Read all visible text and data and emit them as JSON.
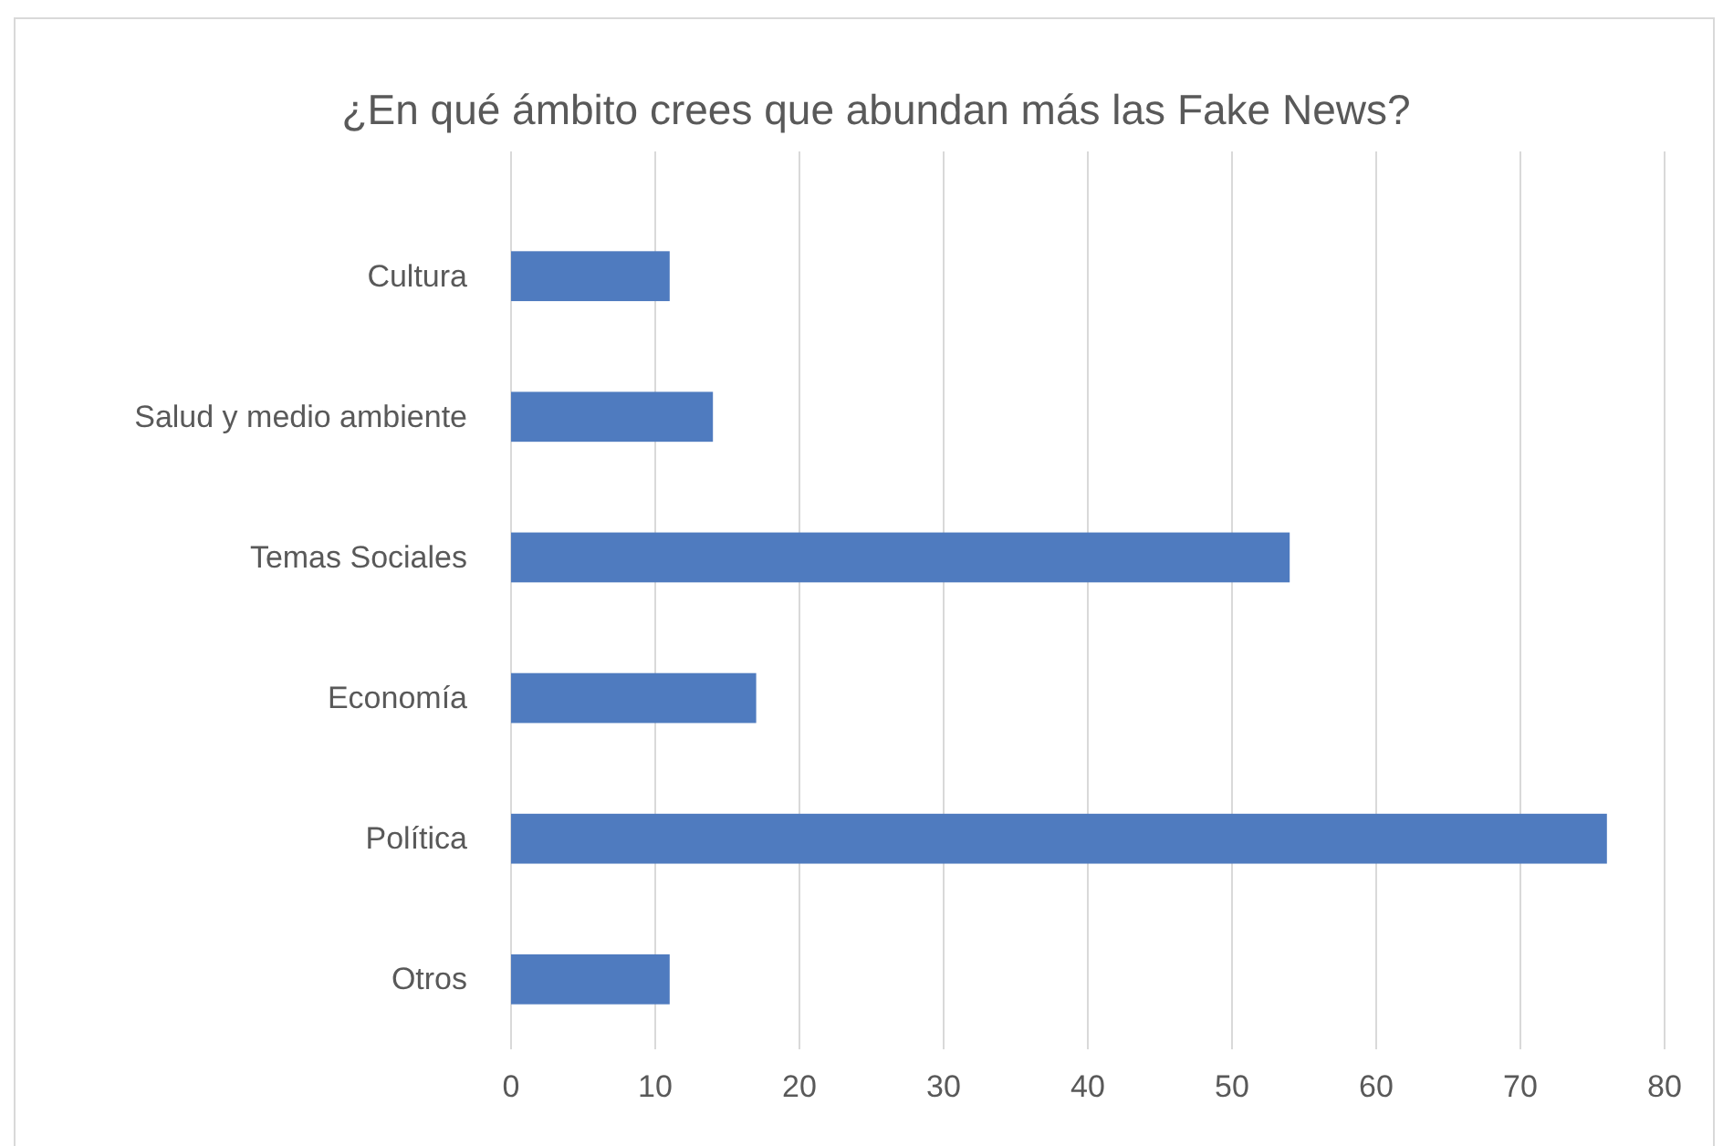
{
  "chart_data": {
    "type": "bar",
    "orientation": "horizontal",
    "title": "¿En qué ámbito crees que abundan más las Fake News?",
    "categories": [
      "Cultura",
      "Salud y medio ambiente",
      "Temas Sociales",
      "Economía",
      "Política",
      "Otros"
    ],
    "values": [
      11,
      14,
      54,
      17,
      76,
      11
    ],
    "color": "#4f7bbf",
    "xlim": [
      0,
      80
    ],
    "xticks": [
      0,
      10,
      20,
      30,
      40,
      50,
      60,
      70,
      80
    ],
    "grid": "x",
    "legend": false
  }
}
